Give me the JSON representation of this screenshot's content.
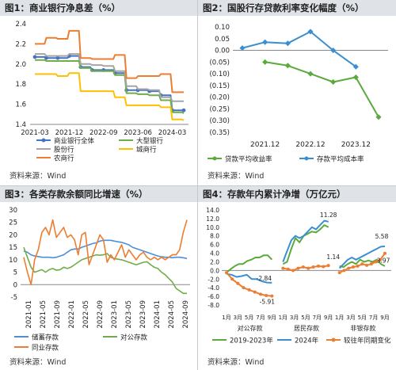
{
  "titles": {
    "p1": "图1：商业银行净息差（%）",
    "p2": "图2：国股行存贷款利率变化幅度（%）",
    "p3": "图3：各类存款余额同比增速（%）",
    "p4": "图4：存款年内累计净增（万亿元）"
  },
  "source": "资料来源：Wind",
  "chart_data": [
    {
      "id": "p1",
      "type": "line",
      "x": [
        "2021-03",
        "2021-06",
        "2021-09",
        "2021-12",
        "2022-03",
        "2022-06",
        "2022-09",
        "2022-12",
        "2023-03",
        "2023-06",
        "2023-09",
        "2023-12",
        "2024-03",
        "2024-06"
      ],
      "x_ticks": [
        "2021-03",
        "2021-12",
        "2022-09",
        "2023-06",
        "2024-03"
      ],
      "ylim": [
        1.4,
        2.4
      ],
      "y_ticks": [
        "1.4",
        "1.6",
        "1.8",
        "2.0",
        "2.2",
        "2.4"
      ],
      "legend_placement": "bottom",
      "series": [
        {
          "name": "商业银行全体",
          "color": "#4472c4",
          "marker": true,
          "values": [
            2.07,
            2.06,
            2.06,
            2.08,
            1.97,
            1.94,
            1.94,
            1.91,
            1.74,
            1.74,
            1.73,
            1.69,
            1.54,
            1.54
          ]
        },
        {
          "name": "大型银行",
          "color": "#70ad47",
          "values": [
            2.04,
            2.03,
            2.03,
            2.03,
            1.96,
            1.93,
            1.93,
            1.89,
            1.71,
            1.7,
            1.69,
            1.64,
            1.52,
            1.51
          ]
        },
        {
          "name": "股份行",
          "color": "#a5a5a5",
          "values": [
            2.1,
            2.08,
            2.08,
            2.1,
            2.0,
            1.99,
            1.98,
            1.93,
            1.78,
            1.75,
            1.74,
            1.67,
            1.63,
            1.63
          ]
        },
        {
          "name": "城商行",
          "color": "#ffc000",
          "values": [
            1.9,
            1.9,
            1.88,
            1.91,
            1.73,
            1.73,
            1.73,
            1.67,
            1.59,
            1.59,
            1.59,
            1.57,
            1.45,
            1.44
          ]
        },
        {
          "name": "农商行",
          "color": "#ed7d31",
          "values": [
            2.2,
            2.26,
            2.25,
            2.33,
            2.06,
            2.05,
            2.05,
            2.09,
            1.86,
            1.88,
            1.88,
            1.9,
            1.72,
            1.72
          ]
        }
      ]
    },
    {
      "id": "p2",
      "type": "line",
      "x": [
        "2021.06",
        "2021.12",
        "2022.06",
        "2022.12",
        "2023.06",
        "2023.12",
        "2024.06"
      ],
      "x_ticks": [
        "2021.12",
        "2022.12",
        "2023.12"
      ],
      "ylim": [
        -0.35,
        0.1
      ],
      "y_ticks": [
        "0.10",
        "0.05",
        "0.00",
        "(0.05)",
        "(0.10)",
        "(0.15)",
        "(0.20)",
        "(0.25)",
        "(0.30)",
        "(0.35)"
      ],
      "legend_placement": "bottom",
      "series": [
        {
          "name": "贷款平均收益率",
          "color": "#5aaa3c",
          "values": [
            null,
            -0.05,
            -0.065,
            -0.1,
            -0.135,
            -0.115,
            -0.285
          ]
        },
        {
          "name": "存款平均成本率",
          "color": "#3a8fd0",
          "values": [
            0.01,
            0.035,
            0.03,
            0.08,
            0.0,
            -0.07,
            null
          ]
        }
      ]
    },
    {
      "id": "p3",
      "type": "line",
      "x_ticks": [
        "2021-01",
        "2021-05",
        "2021-09",
        "2022-01",
        "2022-05",
        "2022-09",
        "2023-01",
        "2023-05",
        "2023-09",
        "2024-01",
        "2024-05",
        "2024-09"
      ],
      "ylim": [
        -5,
        30
      ],
      "y_ticks": [
        "-5",
        "0",
        "5",
        "10",
        "15",
        "20",
        "25",
        "30"
      ],
      "legend_placement": "bottom",
      "series": [
        {
          "name": "储蓄存款",
          "color": "#4a90d9",
          "values": [
            13.5,
            13,
            12,
            11.5,
            11.3,
            11,
            11,
            11,
            10.8,
            11,
            11.5,
            12,
            13,
            14,
            14.3,
            14.3,
            15,
            15.5,
            16,
            16.5,
            16.8,
            17.5,
            17.8,
            17.8,
            17.8,
            17.5,
            17.2,
            17,
            16.5,
            16,
            15,
            14.5,
            14,
            13.5,
            13,
            12.5,
            12,
            11.5,
            11.2,
            11,
            11,
            10.8,
            11,
            11,
            10.8,
            10.5
          ]
        },
        {
          "name": "对公存款",
          "color": "#70ad47",
          "values": [
            15,
            11,
            7,
            5,
            5.5,
            6,
            5,
            6,
            6.5,
            5.8,
            6,
            7,
            6.5,
            7,
            8,
            9,
            10,
            10.5,
            11,
            11.5,
            12,
            11.8,
            12,
            12.5,
            11,
            10.5,
            10.2,
            10,
            9.5,
            9,
            8.5,
            8,
            8.5,
            9,
            9.2,
            8,
            7,
            6.5,
            5,
            4,
            2.5,
            1,
            -1.5,
            -2.5,
            -3.5,
            -3.5
          ]
        },
        {
          "name": "同业存款",
          "color": "#ed7d31",
          "values": [
            11,
            5,
            0,
            10,
            14,
            21,
            23,
            20,
            26,
            19,
            21,
            23,
            19,
            20,
            18,
            12,
            20,
            21,
            8,
            12,
            16,
            20,
            18,
            9,
            12,
            10,
            13,
            16,
            11,
            14,
            12,
            10,
            12,
            13,
            11,
            10,
            11,
            10,
            11,
            10,
            11,
            12,
            12,
            14,
            21,
            26
          ]
        }
      ]
    },
    {
      "id": "p4",
      "type": "line",
      "x_ticks": [
        "1月",
        "3月",
        "5月",
        "7月",
        "9月",
        "1月",
        "3月",
        "5月",
        "7月",
        "9月",
        "1月",
        "3月",
        "5月",
        "7月",
        "9月"
      ],
      "group_labels": [
        "对公存款",
        "居民存款",
        "非银存款"
      ],
      "ylim": [
        -8,
        14
      ],
      "y_ticks": [
        "-8.0",
        "-6.0",
        "-4.0",
        "-2.0",
        "0.0",
        "2.0",
        "4.0",
        "6.0",
        "8.0",
        "10.0",
        "12.0",
        "14.0"
      ],
      "legend_placement": "bottom",
      "series": [
        {
          "name": "2019-2023年",
          "color": "#5aaa3c"
        },
        {
          "name": "2024年",
          "color": "#3a8fd0"
        },
        {
          "name": "较往年同期变化",
          "color": "#ed7d31",
          "marker": true
        }
      ],
      "segments": {
        "2019-2023年": [
          [
            -0.5,
            0.3,
            1,
            1.5,
            1.5,
            2.2,
            2.5,
            3,
            3,
            3.5,
            3.5,
            2.5
          ],
          [
            1.5,
            2,
            5,
            7.5,
            6.5,
            8,
            8.5,
            9,
            8.8,
            9.5,
            10.5,
            10
          ],
          [
            1,
            0.8,
            1.5,
            2,
            1.5,
            2.5,
            2,
            2.3,
            2,
            2.5,
            1.5,
            1
          ]
        ],
        "2024年": [
          [
            -0.8,
            -1,
            -1.5,
            -1.3,
            -1,
            -2,
            -2,
            -2.5,
            -2.8,
            -2.84
          ],
          [
            2,
            4.5,
            7,
            8,
            7.5,
            8,
            9,
            10,
            9.5,
            10.5,
            11.5,
            11.28
          ],
          [
            0.5,
            1.5,
            2.5,
            3,
            2.5,
            3,
            3.5,
            4,
            4.5,
            5,
            5.5,
            5.58
          ]
        ],
        "较往年同期变化": [
          [
            -0.5,
            -2,
            -3,
            -4,
            -4.5,
            -5,
            -5.5,
            -5.8,
            -5.91
          ],
          [
            0.5,
            0.3,
            0,
            0.5,
            0.8,
            0.5,
            0.8,
            1,
            0.9,
            1.14
          ],
          [
            -0.5,
            0,
            0.5,
            0.8,
            1,
            1.5,
            1.2,
            1.5,
            2,
            2.5,
            3.97
          ]
        ]
      },
      "annotations": [
        "11.28",
        "-2.84",
        "1.14",
        "5.58",
        "-5.91",
        "3.97"
      ]
    }
  ]
}
